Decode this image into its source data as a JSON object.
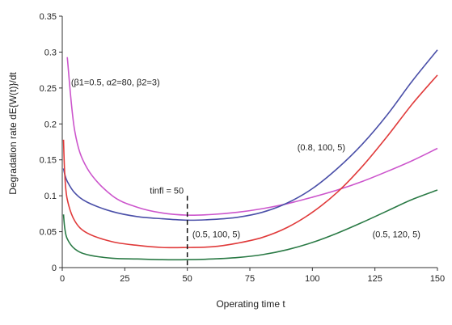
{
  "chart_data": {
    "type": "line",
    "title": "",
    "xlabel": "Operating time t",
    "ylabel": "Degradation rate dE{W(t)}/dt",
    "xlim": [
      0,
      150
    ],
    "ylim": [
      0,
      0.35
    ],
    "x_ticks": [
      0,
      25,
      50,
      75,
      100,
      125,
      150
    ],
    "x_tick_labels": [
      "0",
      "25",
      "50",
      "75",
      "100",
      "125",
      "150"
    ],
    "y_ticks": [
      0,
      0.05,
      0.1,
      0.15,
      0.2,
      0.25,
      0.3,
      0.35
    ],
    "y_tick_labels": [
      "0",
      "0.05",
      "0.1",
      "0.15",
      "0.2",
      "0.25",
      "0.3",
      "0.35"
    ],
    "grid": false,
    "series": [
      {
        "name": "(β1=0.5, α2=80, β2=3)",
        "color": "#cc55cc",
        "x": [
          2,
          5,
          10,
          20,
          30,
          40,
          50,
          60,
          70,
          80,
          90,
          100,
          110,
          120,
          130,
          140,
          150
        ],
        "y": [
          0.293,
          0.19,
          0.138,
          0.1,
          0.084,
          0.076,
          0.073,
          0.074,
          0.077,
          0.082,
          0.089,
          0.098,
          0.108,
          0.12,
          0.134,
          0.149,
          0.166
        ]
      },
      {
        "name": "(0.8, 100, 5)",
        "color": "#4a4fa8",
        "x": [
          0.5,
          1,
          2,
          5,
          10,
          20,
          30,
          40,
          50,
          60,
          70,
          80,
          90,
          100,
          110,
          120,
          130,
          140,
          150
        ],
        "y": [
          0.138,
          0.13,
          0.12,
          0.104,
          0.091,
          0.078,
          0.071,
          0.068,
          0.066,
          0.067,
          0.07,
          0.077,
          0.09,
          0.11,
          0.138,
          0.172,
          0.213,
          0.26,
          0.303
        ]
      },
      {
        "name": "(0.5, 100, 5)",
        "color": "#e03a3a",
        "x": [
          0.5,
          1,
          2,
          5,
          10,
          20,
          30,
          40,
          50,
          60,
          70,
          80,
          90,
          100,
          110,
          120,
          130,
          140,
          150
        ],
        "y": [
          0.178,
          0.13,
          0.095,
          0.065,
          0.048,
          0.036,
          0.031,
          0.028,
          0.028,
          0.029,
          0.034,
          0.042,
          0.056,
          0.077,
          0.105,
          0.141,
          0.183,
          0.228,
          0.268
        ]
      },
      {
        "name": "(0.5, 120, 5)",
        "color": "#2a7a45",
        "x": [
          0.5,
          1,
          2,
          5,
          10,
          20,
          30,
          40,
          50,
          60,
          70,
          80,
          90,
          100,
          110,
          120,
          130,
          140,
          150
        ],
        "y": [
          0.074,
          0.055,
          0.04,
          0.026,
          0.018,
          0.013,
          0.012,
          0.011,
          0.011,
          0.012,
          0.014,
          0.018,
          0.025,
          0.035,
          0.048,
          0.063,
          0.079,
          0.095,
          0.108
        ]
      }
    ],
    "vertical_line": {
      "x": 50,
      "y_top": 0.1
    },
    "annotations": [
      {
        "text": "(β1=0.5, α2=80, β2=3)",
        "x": 3.5,
        "y": 0.254
      },
      {
        "text": "(0.8, 100, 5)",
        "x": 94,
        "y": 0.163
      },
      {
        "text": "(0.5, 100, 5)",
        "x": 52,
        "y": 0.042
      },
      {
        "text": "(0.5, 120, 5)",
        "x": 124,
        "y": 0.042
      },
      {
        "text": "tinfl = 50",
        "x": 35,
        "y": 0.103
      }
    ]
  }
}
